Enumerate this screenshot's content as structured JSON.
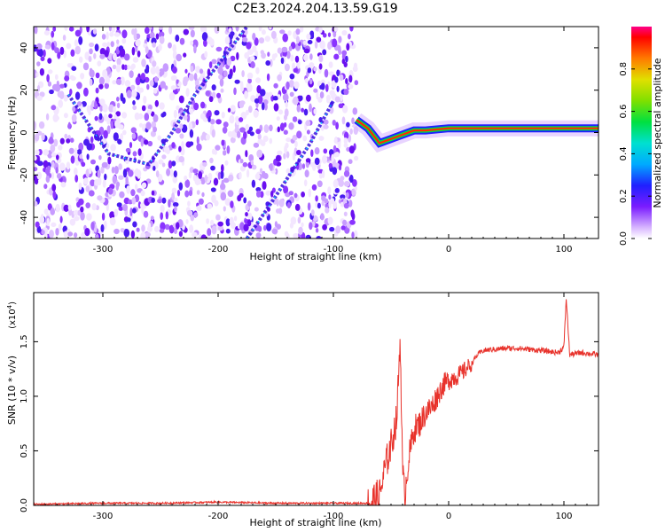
{
  "title": "C2E3.2024.204.13.59.G19",
  "chart_data": [
    {
      "type": "heatmap",
      "xlabel": "Height of straight line (km)",
      "ylabel": "Frequency (Hz)",
      "xlim": [
        -360,
        130
      ],
      "ylim": [
        -50,
        50
      ],
      "xticks": [
        -300,
        -200,
        -100,
        0,
        100
      ],
      "yticks": [
        -40,
        -20,
        0,
        20,
        40
      ],
      "colorbar": {
        "label": "Normalized spectral amplitude",
        "ticks": [
          "0.0",
          "0.2",
          "0.4",
          "0.6",
          "0.8"
        ],
        "range": [
          0,
          1
        ]
      },
      "noise_region_x": [
        -360,
        -80
      ],
      "signal_track": [
        {
          "x": -80,
          "y": 6
        },
        {
          "x": -70,
          "y": 2
        },
        {
          "x": -60,
          "y": -5
        },
        {
          "x": -50,
          "y": -3
        },
        {
          "x": -40,
          "y": -1
        },
        {
          "x": -30,
          "y": 1
        },
        {
          "x": -20,
          "y": 1
        },
        {
          "x": 0,
          "y": 2
        },
        {
          "x": 130,
          "y": 2
        }
      ],
      "diagonal_tracks": [
        [
          {
            "x": -330,
            "y": 18
          },
          {
            "x": -295,
            "y": -10
          },
          {
            "x": -260,
            "y": -15
          },
          {
            "x": -240,
            "y": 0
          },
          {
            "x": -220,
            "y": 18
          },
          {
            "x": -200,
            "y": 32
          },
          {
            "x": -175,
            "y": 50
          }
        ],
        [
          {
            "x": -175,
            "y": -50
          },
          {
            "x": -150,
            "y": -30
          },
          {
            "x": -120,
            "y": -5
          },
          {
            "x": -100,
            "y": 15
          }
        ]
      ],
      "grid": false
    },
    {
      "type": "line",
      "xlabel": "Height of straight line (km)",
      "ylabel": "SNR (10 * v/v)",
      "multiplier": "(x10",
      "multiplier_exp": "4",
      "multiplier_close": ")",
      "xlim": [
        -360,
        130
      ],
      "ylim": [
        0,
        1.95
      ],
      "xticks": [
        -300,
        -200,
        -100,
        0,
        100
      ],
      "yticks": [
        "0.0",
        "0.5",
        "1.0",
        "1.5"
      ],
      "series": [
        {
          "color": "#e8322b",
          "x": [
            -360,
            -300,
            -250,
            -200,
            -150,
            -100,
            -70,
            -60,
            -55,
            -50,
            -45,
            -42,
            -40,
            -38,
            -35,
            -30,
            -25,
            -20,
            -15,
            -10,
            -5,
            0,
            10,
            20,
            25,
            30,
            40,
            50,
            60,
            80,
            95,
            100,
            102,
            105,
            115,
            130
          ],
          "y": [
            0.01,
            0.02,
            0.02,
            0.03,
            0.02,
            0.02,
            0.02,
            0.08,
            0.35,
            0.55,
            0.8,
            1.55,
            0.3,
            0.1,
            0.4,
            0.7,
            0.75,
            0.85,
            0.9,
            1.0,
            1.1,
            1.15,
            1.2,
            1.3,
            1.38,
            1.42,
            1.43,
            1.44,
            1.44,
            1.42,
            1.4,
            1.45,
            1.9,
            1.38,
            1.4,
            1.38
          ]
        }
      ],
      "grid": false
    }
  ]
}
